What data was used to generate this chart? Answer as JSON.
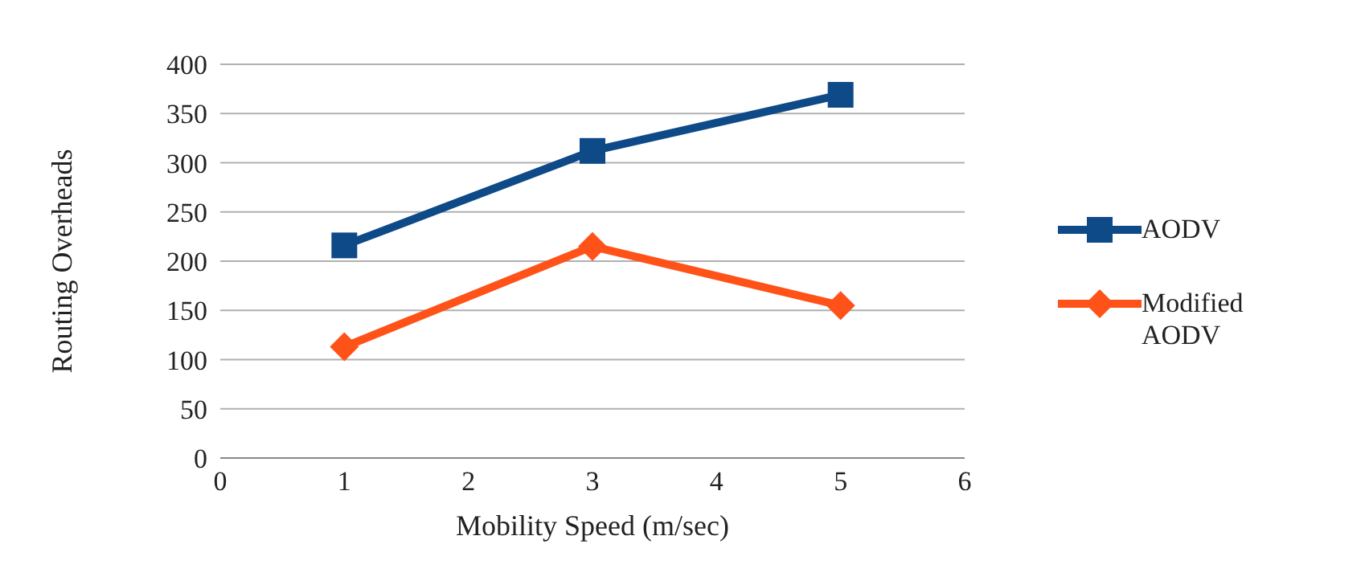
{
  "chart_data": {
    "type": "line",
    "xlabel": "Mobility Speed (m/sec)",
    "ylabel": "Routing Overheads",
    "x": [
      1,
      3,
      5
    ],
    "xlim": [
      0,
      6
    ],
    "xticks": [
      0,
      1,
      2,
      3,
      4,
      5,
      6
    ],
    "ylim": [
      0,
      400
    ],
    "yticks": [
      0,
      50,
      100,
      150,
      200,
      250,
      300,
      350,
      400
    ],
    "grid": "y",
    "legend": "right",
    "series": [
      {
        "name": "AODV",
        "color": "#0e4a87",
        "values": [
          216,
          312,
          369
        ],
        "marker": "square"
      },
      {
        "name": "Modified AODV",
        "color": "#ff5219",
        "values": [
          113,
          215,
          155
        ],
        "marker": "diamond"
      }
    ]
  }
}
